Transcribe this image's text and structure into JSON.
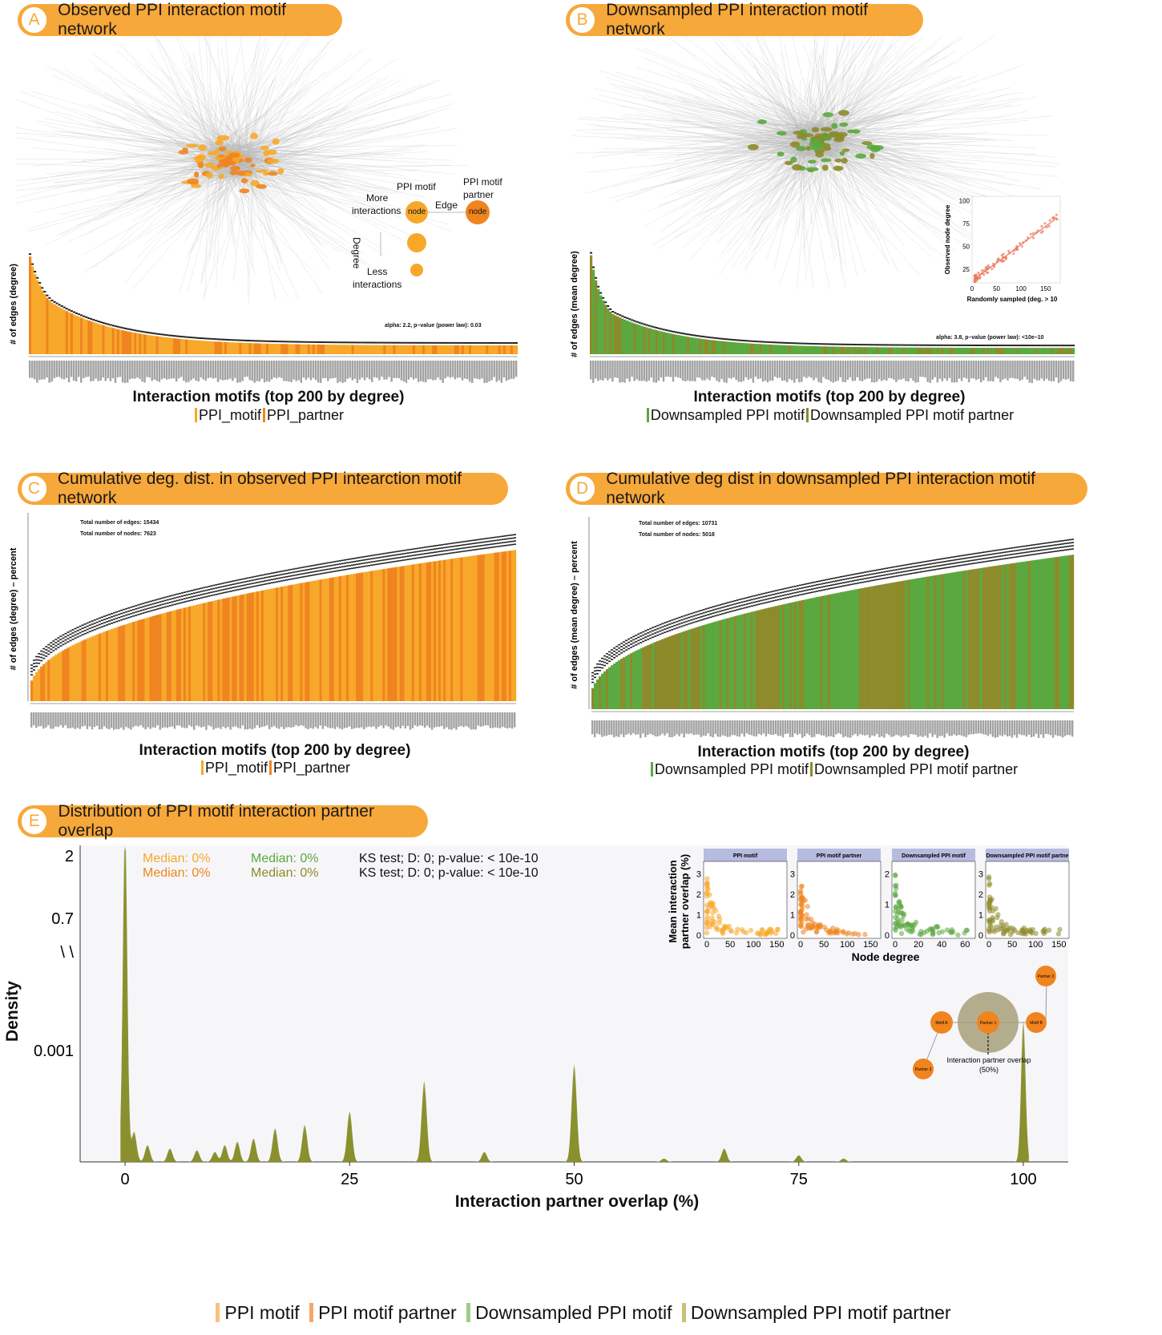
{
  "panels": {
    "A": {
      "letter": "A",
      "title": "Observed PPI interaction motif network"
    },
    "B": {
      "letter": "B",
      "title": "Downsampled PPI interaction motif network"
    },
    "C": {
      "letter": "C",
      "title": "Cumulative deg. dist. in observed PPI intearction motif network"
    },
    "D": {
      "letter": "D",
      "title": "Cumulative deg dist in downsampled PPI interaction motif network"
    },
    "E": {
      "letter": "E",
      "title": "Distribution of PPI motif interaction partner overlap"
    }
  },
  "network_legend": {
    "ppi_motif": "PPI motif",
    "ppi_motif_partner_line1": "PPI motif",
    "ppi_motif_partner_line2": "partner",
    "more_line1": "More",
    "more_line2": "interactions",
    "edge": "Edge",
    "node": "node",
    "degree": "Degree",
    "less_line1": "Less",
    "less_line2": "interactions"
  },
  "colors": {
    "ppi_motif": "#f7a829",
    "ppi_motif_partner": "#f0841f",
    "downsampled_motif": "#5aa83f",
    "downsampled_partner": "#8d8a2a",
    "tag": "#f7a83a"
  },
  "chart_data": [
    {
      "id": "A_degree_bars",
      "type": "bar",
      "ylabel": "# of edges (degree)",
      "xlabel": "Interaction motifs (top 200 by degree)",
      "legend": [
        "PPI_motif",
        "PPI_partner"
      ],
      "annotation": "alpha: 2.2, p–value (power law): 0.03",
      "n_bars": 200,
      "shape": "decaying",
      "ylim": [
        0,
        160
      ],
      "values_first": [
        156,
        140,
        128,
        118,
        110,
        102,
        96,
        90,
        86,
        82
      ],
      "value_last": 14
    },
    {
      "id": "B_degree_bars",
      "type": "bar",
      "ylabel": "# of edges (mean degree)",
      "xlabel": "Interaction motifs (top 200 by degree)",
      "legend": [
        "Downsampled PPI motif",
        "Downsampled PPI motif partner"
      ],
      "annotation": "alpha: 3.8, p–value (power law): <10e–10",
      "n_bars": 200,
      "shape": "decaying",
      "ylim": [
        0,
        160
      ],
      "values_first": [
        158,
        135,
        118,
        104,
        94,
        86,
        79,
        73,
        68,
        64
      ],
      "value_last": 10
    },
    {
      "id": "B_inset_scatter",
      "type": "scatter",
      "xlabel": "Randomly sampled (deg. > 10",
      "ylabel": "Observed node degree",
      "xticks": [
        0,
        50,
        100,
        150
      ],
      "yticks": [
        25,
        50,
        75,
        100
      ],
      "xlim": [
        0,
        180
      ],
      "ylim": [
        10,
        105
      ]
    },
    {
      "id": "C_cumulative",
      "type": "bar",
      "ylabel": "# of edges (degree) – percent",
      "xlabel": "Interaction motifs (top 200 by degree)",
      "legend": [
        "PPI_motif",
        "PPI_partner"
      ],
      "annotations": [
        "Total number of edges: 15434",
        "Total number of nodes: 7623"
      ],
      "n_bars": 200,
      "shape": "cumulative"
    },
    {
      "id": "D_cumulative",
      "type": "bar",
      "ylabel": "# of edges (mean degree) – percent",
      "xlabel": "Interaction motifs (top 200 by degree)",
      "legend": [
        "Downsampled PPI motif",
        "Downsampled PPI motif partner"
      ],
      "annotations": [
        "Total number of edges: 10731",
        "Total number of nodes: 5018"
      ],
      "n_bars": 200,
      "shape": "cumulative"
    },
    {
      "id": "E_density",
      "type": "area",
      "xlabel": "Interaction partner overlap (%)",
      "ylabel": "Density",
      "xticks": [
        0,
        25,
        50,
        75,
        100
      ],
      "yticks": [
        "2",
        "0.7",
        "\\ \\",
        "0.001"
      ],
      "xlim": [
        -5,
        105
      ],
      "legend": [
        "PPI motif",
        "PPI motif partner",
        "Downsampled PPI motif",
        "Downsampled PPI motif partner"
      ],
      "medians": [
        "Median: 0%",
        "Median: 0%",
        "Median: 0%",
        "Median: 0%"
      ],
      "ks_tests": [
        "KS test; D: 0; p-value: < 10e-10",
        "KS test; D: 0; p-value: < 10e-10"
      ],
      "peaks": [
        {
          "x": 0,
          "h": 1.0
        },
        {
          "x": 1,
          "h": 0.09
        },
        {
          "x": 2.5,
          "h": 0.05
        },
        {
          "x": 5,
          "h": 0.04
        },
        {
          "x": 8,
          "h": 0.035
        },
        {
          "x": 10,
          "h": 0.03
        },
        {
          "x": 11.1,
          "h": 0.05
        },
        {
          "x": 12.5,
          "h": 0.06
        },
        {
          "x": 14.3,
          "h": 0.07
        },
        {
          "x": 16.7,
          "h": 0.1
        },
        {
          "x": 20,
          "h": 0.11
        },
        {
          "x": 25,
          "h": 0.15
        },
        {
          "x": 33.3,
          "h": 0.24
        },
        {
          "x": 40,
          "h": 0.03
        },
        {
          "x": 50,
          "h": 0.29
        },
        {
          "x": 60,
          "h": 0.01
        },
        {
          "x": 66.7,
          "h": 0.04
        },
        {
          "x": 75,
          "h": 0.02
        },
        {
          "x": 80,
          "h": 0.01
        },
        {
          "x": 100,
          "h": 0.42
        }
      ]
    },
    {
      "id": "E_inset_facets",
      "type": "scatter",
      "facets": [
        "PPI motif",
        "PPI motif partner",
        "Downsampled PPI motif",
        "Downsampled PPI motif partne"
      ],
      "xlabel": "Node degree",
      "ylabel": "Mean interaction partner overlap (%)",
      "xticks": [
        [
          0,
          50,
          100,
          150
        ],
        [
          0,
          50,
          100,
          150
        ],
        [
          0,
          20,
          40,
          60
        ],
        [
          0,
          50,
          100,
          150
        ]
      ],
      "yticks": [
        [
          0,
          1,
          2,
          3
        ],
        [
          0,
          1,
          2,
          3
        ],
        [
          0,
          1,
          2
        ],
        [
          0,
          1,
          2,
          3
        ]
      ]
    }
  ],
  "axis_labels": {
    "a_y": "# of edges (degree)",
    "b_y": "# of edges (mean degree)",
    "c_y": "# of edges (degree) – percent",
    "d_y": "# of edges (mean degree) – percent",
    "x_top200": "Interaction motifs (top 200 by degree)",
    "e_x": "Interaction partner overlap (%)",
    "e_y": "Density",
    "node_degree": "Node degree",
    "mean_overlap_line1": "Mean interaction",
    "mean_overlap_line2": "partner overlap (%)",
    "b_inset_x": "Randomly sampled (deg. > 10",
    "b_inset_y": "Observed node degree"
  },
  "legends": {
    "obs_motif": "PPI_motif",
    "obs_partner": "PPI_partner",
    "ds_motif": "Downsampled PPI motif",
    "ds_partner": "Downsampled PPI motif partner",
    "e_motif": "PPI motif",
    "e_partner": "PPI motif partner",
    "e_ds_motif": "Downsampled PPI motif",
    "e_ds_partner": "Downsampled PPI motif partner"
  },
  "annotations": {
    "a_alpha": "alpha: 2.2, p–value (power law): 0.03",
    "b_alpha": "alpha: 3.8, p–value (power law): <10e–10",
    "c_edges": "Total number of edges: 15434",
    "c_nodes": "Total number of nodes: 7623",
    "d_edges": "Total number of edges: 10731",
    "d_nodes": "Total number of nodes: 5018"
  },
  "e_stats": {
    "median_motif": "Median: 0%",
    "median_partner": "Median: 0%",
    "median_ds_motif": "Median: 0%",
    "median_ds_partner": "Median: 0%",
    "ks1": "KS test; D: 0; p-value: < 10e-10",
    "ks2": "KS test; D: 0; p-value: < 10e-10"
  },
  "e_ticks": {
    "x0": "0",
    "x25": "25",
    "x50": "50",
    "x75": "75",
    "x100": "100",
    "y2": "2",
    "y07": "0.7",
    "ybreak": "\\ \\",
    "y0001": "0.001"
  },
  "overlap_diagram": {
    "motif_a": "Motif A",
    "motif_b": "Motif B",
    "partner_1": "Partner 1",
    "partner_2": "Partner 2",
    "partner_3": "Partner 3",
    "caption_line1": "Interaction partner overlap",
    "caption_line2": "(50%)"
  }
}
